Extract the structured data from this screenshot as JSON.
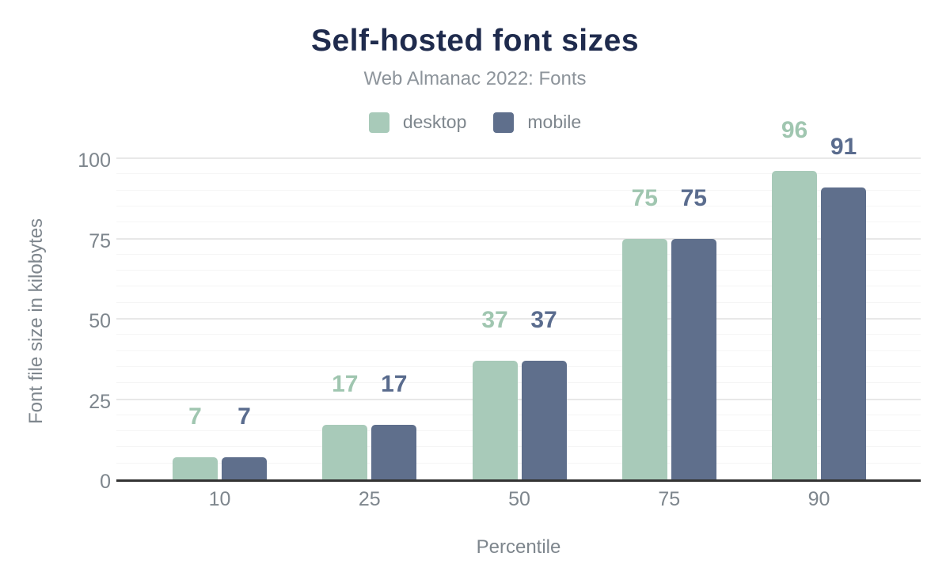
{
  "header": {
    "title": "Self-hosted font sizes",
    "subtitle": "Web Almanac 2022: Fonts"
  },
  "colors": {
    "title": "#1f2b4d",
    "subtitle": "#8d949b",
    "tick": "#7e868d",
    "axis_line": "#333333",
    "grid_major": "#e8e8e8",
    "grid_minor": "#f5f5f5",
    "background": "#ffffff",
    "desktop": "#a8cab9",
    "mobile": "#5f6f8c"
  },
  "chart_data": {
    "type": "bar",
    "title": "Self-hosted font sizes",
    "subtitle": "Web Almanac 2022: Fonts",
    "categories": [
      "10",
      "25",
      "50",
      "75",
      "90"
    ],
    "series": [
      {
        "name": "desktop",
        "color": "#a8cab9",
        "label_color": "#a0c6b0",
        "values": [
          7,
          17,
          37,
          75,
          96
        ]
      },
      {
        "name": "mobile",
        "color": "#5f6f8c",
        "label_color": "#5a6c8e",
        "values": [
          7,
          17,
          37,
          75,
          91
        ]
      }
    ],
    "xlabel": "Percentile",
    "ylabel": "Font file size in kilobytes",
    "ylim": [
      0,
      100
    ],
    "yticks": [
      0,
      25,
      50,
      75,
      100
    ],
    "grid": {
      "minor_every": 5,
      "major_every": 25,
      "grid_on": true
    },
    "legend_position": "top",
    "bar_value_labels_shown": true
  }
}
